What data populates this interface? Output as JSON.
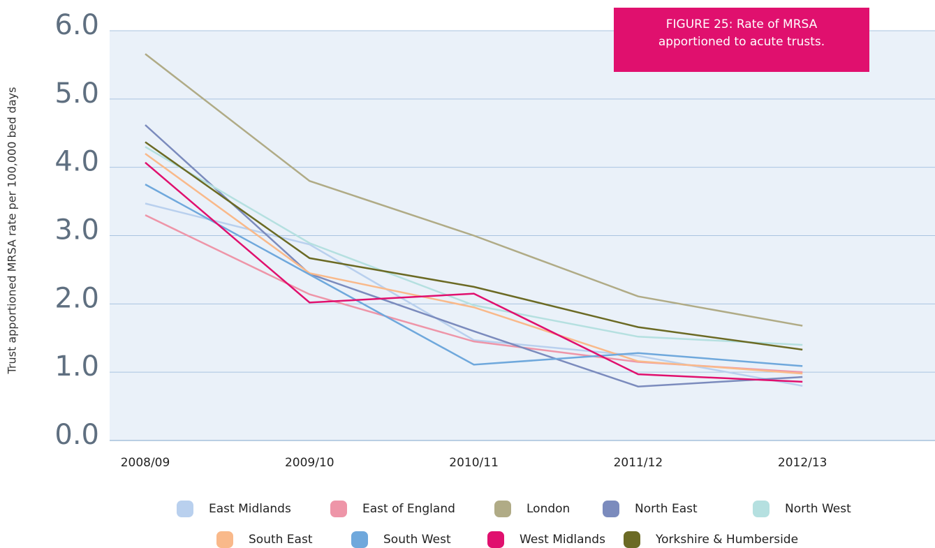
{
  "chart_data": {
    "type": "line",
    "title": "FIGURE 25: Rate of MRSA apportioned to acute trusts.",
    "y_label": "Trust apportioned MRSA rate per 100,000 bed days",
    "categories": [
      "2008/09",
      "2009/10",
      "2010/11",
      "2011/12",
      "2012/13"
    ],
    "ylim": [
      0,
      6
    ],
    "yticks": [
      {
        "value": 0,
        "label": "0.0"
      },
      {
        "value": 1,
        "label": "1.0"
      },
      {
        "value": 2,
        "label": "2.0"
      },
      {
        "value": 3,
        "label": "3.0"
      },
      {
        "value": 4,
        "label": "4.0"
      },
      {
        "value": 5,
        "label": "5.0"
      },
      {
        "value": 6,
        "label": "6.0"
      }
    ],
    "grid": true,
    "series": [
      {
        "name": "East Midlands",
        "color": "#b9d0ee",
        "values": [
          3.47,
          2.87,
          1.47,
          1.24,
          0.8
        ]
      },
      {
        "name": "East of England",
        "color": "#ee95a8",
        "values": [
          3.3,
          2.14,
          1.45,
          1.15,
          1.0
        ]
      },
      {
        "name": "London",
        "color": "#b0ab86",
        "values": [
          5.66,
          3.8,
          3.0,
          2.11,
          1.68
        ]
      },
      {
        "name": "North East",
        "color": "#7b8bbd",
        "values": [
          4.62,
          2.44,
          1.6,
          0.79,
          0.93
        ]
      },
      {
        "name": "North West",
        "color": "#b5e0e0",
        "values": [
          4.3,
          2.89,
          1.98,
          1.52,
          1.4
        ]
      },
      {
        "name": "South East",
        "color": "#f9b98a",
        "values": [
          4.2,
          2.45,
          1.95,
          1.16,
          0.98
        ]
      },
      {
        "name": "South West",
        "color": "#6fa8dc",
        "values": [
          3.75,
          2.43,
          1.11,
          1.28,
          1.09
        ]
      },
      {
        "name": "West Midlands",
        "color": "#e0106e",
        "values": [
          4.07,
          2.02,
          2.15,
          0.97,
          0.86
        ]
      },
      {
        "name": "Yorkshire & Humberside",
        "color": "#6b6a24",
        "values": [
          4.37,
          2.67,
          2.25,
          1.66,
          1.33
        ]
      }
    ]
  }
}
